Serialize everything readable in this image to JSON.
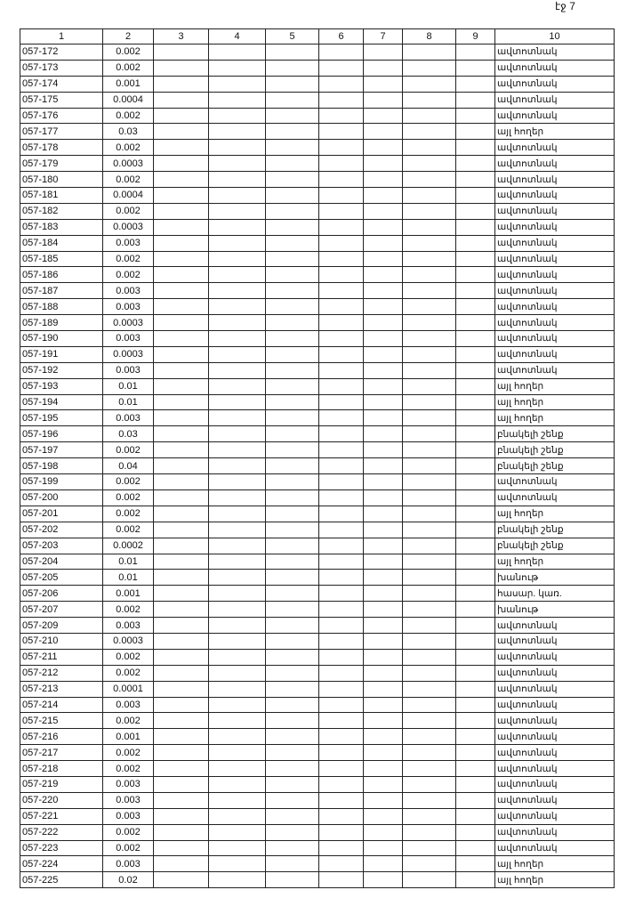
{
  "page_label": "էջ 7",
  "headers": [
    "1",
    "2",
    "3",
    "4",
    "5",
    "6",
    "7",
    "8",
    "9",
    "10"
  ],
  "rows": [
    [
      "057-172",
      "0.002",
      "ավտոտնակ"
    ],
    [
      "057-173",
      "0.002",
      "ավտոտնակ"
    ],
    [
      "057-174",
      "0.001",
      "ավտոտնակ"
    ],
    [
      "057-175",
      "0.0004",
      "ավտոտնակ"
    ],
    [
      "057-176",
      "0.002",
      "ավտոտնակ"
    ],
    [
      "057-177",
      "0.03",
      "այլ հողեր"
    ],
    [
      "057-178",
      "0.002",
      "ավտոտնակ"
    ],
    [
      "057-179",
      "0.0003",
      "ավտոտնակ"
    ],
    [
      "057-180",
      "0.002",
      "ավտոտնակ"
    ],
    [
      "057-181",
      "0.0004",
      "ավտոտնակ"
    ],
    [
      "057-182",
      "0.002",
      "ավտոտնակ"
    ],
    [
      "057-183",
      "0.0003",
      "ավտոտնակ"
    ],
    [
      "057-184",
      "0.003",
      "ավտոտնակ"
    ],
    [
      "057-185",
      "0.002",
      "ավտոտնակ"
    ],
    [
      "057-186",
      "0.002",
      "ավտոտնակ"
    ],
    [
      "057-187",
      "0.003",
      "ավտոտնակ"
    ],
    [
      "057-188",
      "0.003",
      "ավտոտնակ"
    ],
    [
      "057-189",
      "0.0003",
      "ավտոտնակ"
    ],
    [
      "057-190",
      "0.003",
      "ավտոտնակ"
    ],
    [
      "057-191",
      "0.0003",
      "ավտոտնակ"
    ],
    [
      "057-192",
      "0.003",
      "ավտոտնակ"
    ],
    [
      "057-193",
      "0.01",
      "այլ հողեր"
    ],
    [
      "057-194",
      "0.01",
      "այլ հողեր"
    ],
    [
      "057-195",
      "0.003",
      "այլ հողեր"
    ],
    [
      "057-196",
      "0.03",
      "բնակելի շենք"
    ],
    [
      "057-197",
      "0.002",
      "բնակելի շենք"
    ],
    [
      "057-198",
      "0.04",
      "բնակելի շենք"
    ],
    [
      "057-199",
      "0.002",
      "ավտոտնակ"
    ],
    [
      "057-200",
      "0.002",
      "ավտոտնակ"
    ],
    [
      "057-201",
      "0.002",
      "այլ հողեր"
    ],
    [
      "057-202",
      "0.002",
      "բնակելի շենք"
    ],
    [
      "057-203",
      "0.0002",
      "բնակելի շենք"
    ],
    [
      "057-204",
      "0.01",
      "այլ հողեր"
    ],
    [
      "057-205",
      "0.01",
      "խանութ"
    ],
    [
      "057-206",
      "0.001",
      "հասար. կառ."
    ],
    [
      "057-207",
      "0.002",
      "խանութ"
    ],
    [
      "057-209",
      "0.003",
      "ավտոտնակ"
    ],
    [
      "057-210",
      "0.0003",
      "ավտոտնակ"
    ],
    [
      "057-211",
      "0.002",
      "ավտոտնակ"
    ],
    [
      "057-212",
      "0.002",
      "ավտոտնակ"
    ],
    [
      "057-213",
      "0.0001",
      "ավտոտնակ"
    ],
    [
      "057-214",
      "0.003",
      "ավտոտնակ"
    ],
    [
      "057-215",
      "0.002",
      "ավտոտնակ"
    ],
    [
      "057-216",
      "0.001",
      "ավտոտնակ"
    ],
    [
      "057-217",
      "0.002",
      "ավտոտնակ"
    ],
    [
      "057-218",
      "0.002",
      "ավտոտնակ"
    ],
    [
      "057-219",
      "0.003",
      "ավտոտնակ"
    ],
    [
      "057-220",
      "0.003",
      "ավտոտնակ"
    ],
    [
      "057-221",
      "0.003",
      "ավտոտնակ"
    ],
    [
      "057-222",
      "0.002",
      "ավտոտնակ"
    ],
    [
      "057-223",
      "0.002",
      "ավտոտնակ"
    ],
    [
      "057-224",
      "0.003",
      "այլ հողեր"
    ],
    [
      "057-225",
      "0.02",
      "այլ հողեր"
    ]
  ]
}
